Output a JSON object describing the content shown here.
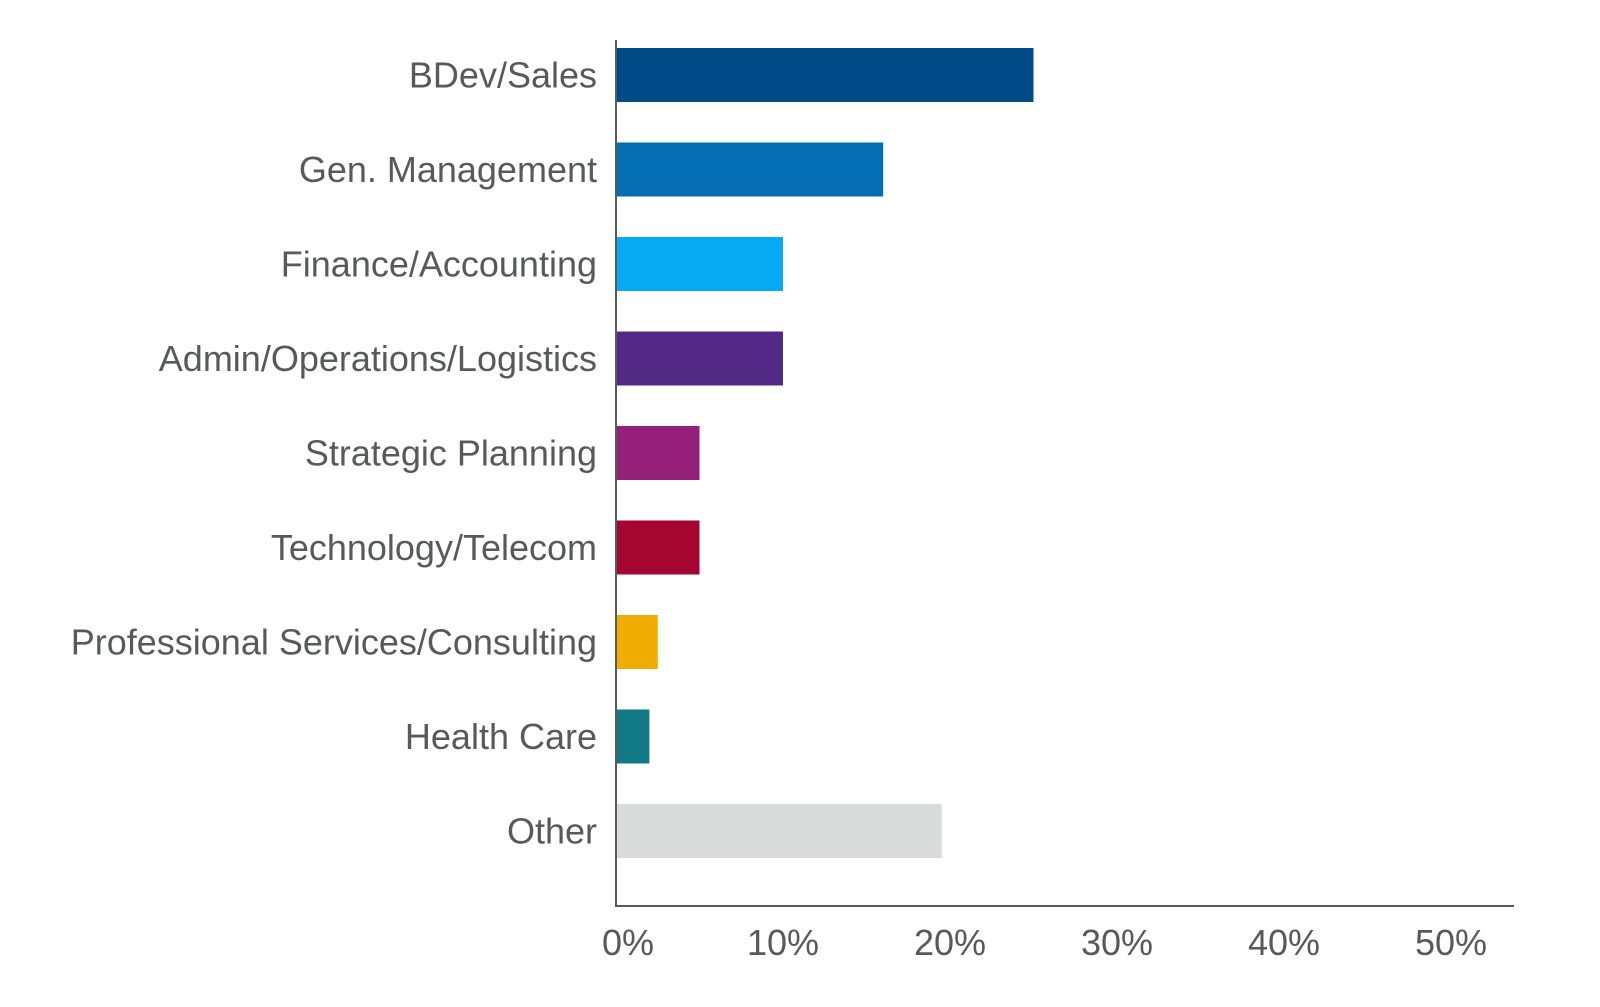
{
  "chart_data": {
    "type": "bar",
    "orientation": "horizontal",
    "title": "",
    "xlabel": "",
    "ylabel": "",
    "categories": [
      "BDev/Sales",
      "Gen. Management",
      "Finance/Accounting",
      "Admin/Operations/Logistics",
      "Strategic Planning",
      "Technology/Telecom",
      "Professional Services/Consulting",
      "Health Care",
      "Other"
    ],
    "values": [
      25,
      16,
      10,
      10,
      5,
      5,
      2.5,
      2,
      19.5
    ],
    "colors": [
      "#004a87",
      "#036eb4",
      "#07a9f3",
      "#522a86",
      "#95207a",
      "#a50531",
      "#f0ac00",
      "#127a87",
      "#d9dbda"
    ],
    "xlim": [
      0,
      53
    ],
    "x_ticks": [
      0,
      10,
      20,
      30,
      40,
      50
    ],
    "x_tick_labels": [
      "0%",
      "10%",
      "20%",
      "30%",
      "40%",
      "50%"
    ],
    "grid": false,
    "legend": "none"
  }
}
